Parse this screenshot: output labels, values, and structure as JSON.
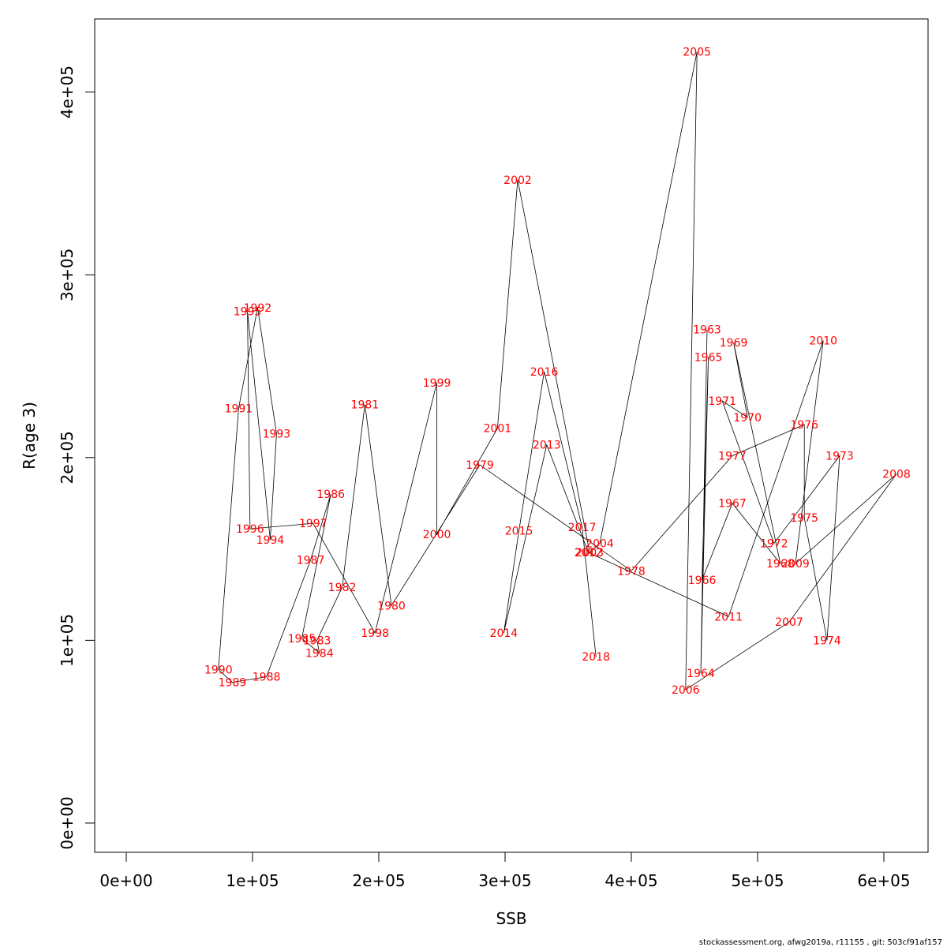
{
  "chart_data": {
    "type": "line",
    "xlabel": "SSB",
    "ylabel": "R(age 3)",
    "xlim": [
      -25000,
      635000
    ],
    "ylim": [
      -16000,
      440000
    ],
    "x_ticks": [
      0,
      100000,
      200000,
      300000,
      400000,
      500000,
      600000
    ],
    "x_tick_labels": [
      "0e+00",
      "1e+05",
      "2e+05",
      "3e+05",
      "4e+05",
      "5e+05",
      "6e+05"
    ],
    "y_ticks": [
      0,
      100000,
      200000,
      300000,
      400000
    ],
    "y_tick_labels": [
      "0e+00",
      "1e+05",
      "2e+05",
      "3e+05",
      "4e+05"
    ],
    "grid": false,
    "line_color": "#000000",
    "label_color": "#ff0000",
    "points": [
      {
        "year": "1963",
        "x": 460000,
        "y": 270000
      },
      {
        "year": "1964",
        "x": 455000,
        "y": 82000
      },
      {
        "year": "1965",
        "x": 461000,
        "y": 255000
      },
      {
        "year": "1966",
        "x": 456000,
        "y": 133000
      },
      {
        "year": "1967",
        "x": 480000,
        "y": 175000
      },
      {
        "year": "1968",
        "x": 518000,
        "y": 142000
      },
      {
        "year": "1969",
        "x": 481000,
        "y": 263000
      },
      {
        "year": "1970",
        "x": 492000,
        "y": 222000
      },
      {
        "year": "1971",
        "x": 472000,
        "y": 231000
      },
      {
        "year": "1972",
        "x": 513000,
        "y": 153000
      },
      {
        "year": "1973",
        "x": 565000,
        "y": 201000
      },
      {
        "year": "1974",
        "x": 555000,
        "y": 100000
      },
      {
        "year": "1975",
        "x": 537000,
        "y": 167000
      },
      {
        "year": "1976",
        "x": 537000,
        "y": 218000
      },
      {
        "year": "1977",
        "x": 480000,
        "y": 201000
      },
      {
        "year": "1978",
        "x": 400000,
        "y": 138000
      },
      {
        "year": "1979",
        "x": 280000,
        "y": 196000
      },
      {
        "year": "1980",
        "x": 210000,
        "y": 119000
      },
      {
        "year": "1981",
        "x": 189000,
        "y": 229000
      },
      {
        "year": "1982",
        "x": 171000,
        "y": 129000
      },
      {
        "year": "1983",
        "x": 151000,
        "y": 100000
      },
      {
        "year": "1984",
        "x": 153000,
        "y": 93000
      },
      {
        "year": "1985",
        "x": 139000,
        "y": 101000
      },
      {
        "year": "1986",
        "x": 162000,
        "y": 180000
      },
      {
        "year": "1987",
        "x": 146000,
        "y": 144000
      },
      {
        "year": "1988",
        "x": 111000,
        "y": 80000
      },
      {
        "year": "1989",
        "x": 84000,
        "y": 77000
      },
      {
        "year": "1990",
        "x": 73000,
        "y": 84000
      },
      {
        "year": "1991",
        "x": 89000,
        "y": 227000
      },
      {
        "year": "1992",
        "x": 104000,
        "y": 282000
      },
      {
        "year": "1993",
        "x": 119000,
        "y": 213000
      },
      {
        "year": "1994",
        "x": 114000,
        "y": 155000
      },
      {
        "year": "1995",
        "x": 96000,
        "y": 280000
      },
      {
        "year": "1996",
        "x": 98000,
        "y": 161000
      },
      {
        "year": "1997",
        "x": 148000,
        "y": 164000
      },
      {
        "year": "1998",
        "x": 197000,
        "y": 104000
      },
      {
        "year": "1999",
        "x": 246000,
        "y": 241000
      },
      {
        "year": "2000",
        "x": 246000,
        "y": 158000
      },
      {
        "year": "2001",
        "x": 294000,
        "y": 216000
      },
      {
        "year": "2002",
        "x": 310000,
        "y": 352000
      },
      {
        "year": "2003",
        "x": 367000,
        "y": 148000
      },
      {
        "year": "2004",
        "x": 375000,
        "y": 153000
      },
      {
        "year": "2005",
        "x": 452000,
        "y": 422000
      },
      {
        "year": "2006",
        "x": 443000,
        "y": 73000
      },
      {
        "year": "2007",
        "x": 525000,
        "y": 110000
      },
      {
        "year": "2008",
        "x": 610000,
        "y": 191000
      },
      {
        "year": "2009",
        "x": 530000,
        "y": 142000
      },
      {
        "year": "2010",
        "x": 552000,
        "y": 264000
      },
      {
        "year": "2011",
        "x": 477000,
        "y": 113000
      },
      {
        "year": "2012",
        "x": 366000,
        "y": 148000
      },
      {
        "year": "2013",
        "x": 333000,
        "y": 207000
      },
      {
        "year": "2014",
        "x": 299000,
        "y": 104000
      },
      {
        "year": "2015",
        "x": 311000,
        "y": 160000
      },
      {
        "year": "2016",
        "x": 331000,
        "y": 247000
      },
      {
        "year": "2017",
        "x": 361000,
        "y": 162000
      },
      {
        "year": "2018",
        "x": 372000,
        "y": 91000
      }
    ]
  },
  "footer_text": "stockassessment.org, afwg2019a, r11155 , git: 503cf91af157"
}
